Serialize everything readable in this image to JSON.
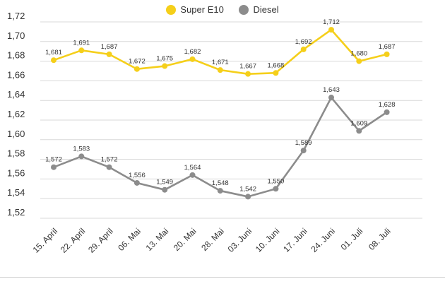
{
  "legend": [
    {
      "name": "Super E10",
      "color": "#f5cf1a"
    },
    {
      "name": "Diesel",
      "color": "#8c8c8c"
    }
  ],
  "chart_data": {
    "type": "line",
    "categories": [
      "15. April",
      "22. April",
      "29. April",
      "06. Mai",
      "13. Mai",
      "20. Mai",
      "28. Mai",
      "03. Juni",
      "10. Juni",
      "17. Juni",
      "24. Juni",
      "01. Juli",
      "08. Juli"
    ],
    "series": [
      {
        "name": "Super E10",
        "color": "#f5cf1a",
        "values": [
          1.681,
          1.691,
          1.687,
          1.672,
          1.675,
          1.682,
          1.671,
          1.667,
          1.668,
          1.692,
          1.712,
          1.68,
          1.687
        ],
        "labels": [
          "1,681",
          "1,691",
          "1,687",
          "1,672",
          "1,675",
          "1,682",
          "1,671",
          "1,667",
          "1,668",
          "1,692",
          "1,712",
          "1,680",
          "1,687"
        ]
      },
      {
        "name": "Diesel",
        "color": "#8c8c8c",
        "values": [
          1.572,
          1.583,
          1.572,
          1.556,
          1.549,
          1.564,
          1.548,
          1.542,
          1.55,
          1.589,
          1.643,
          1.609,
          1.628
        ],
        "labels": [
          "1,572",
          "1,583",
          "1,572",
          "1,556",
          "1,549",
          "1,564",
          "1,548",
          "1,542",
          "1,550",
          "1,589",
          "1,643",
          "1,609",
          "1,628"
        ]
      }
    ],
    "ylim": [
      1.52,
      1.72
    ],
    "yticks": [
      "1,52",
      "1,54",
      "1,56",
      "1,58",
      "1,60",
      "1,62",
      "1,64",
      "1,66",
      "1,68",
      "1,70",
      "1,72"
    ],
    "grid": true,
    "legend_position": "top-center"
  }
}
